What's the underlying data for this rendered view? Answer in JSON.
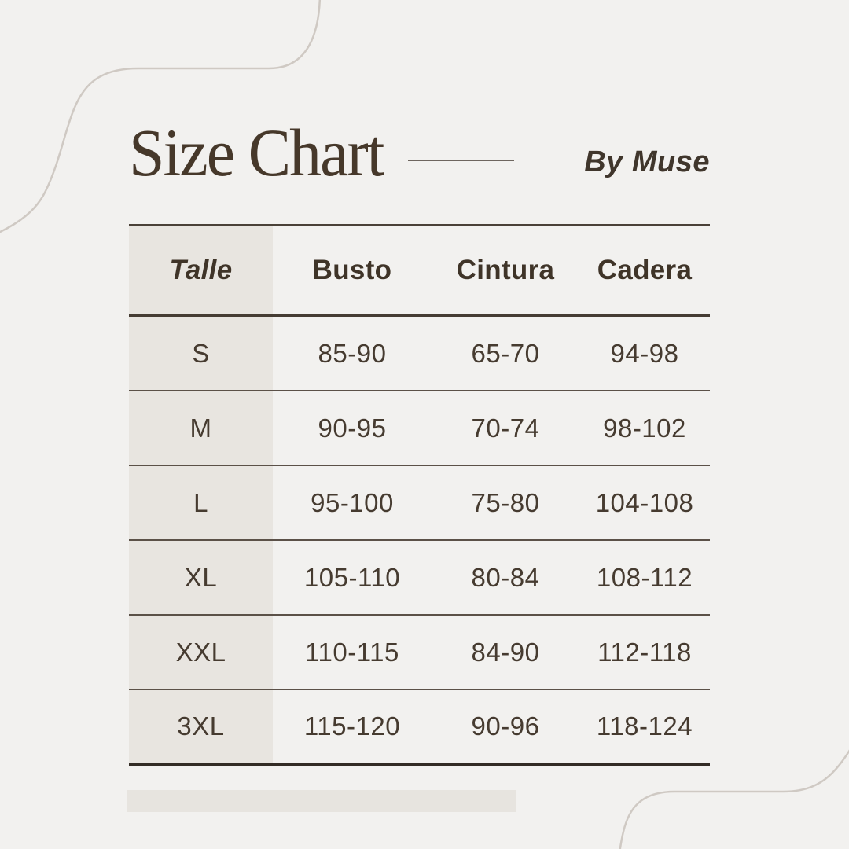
{
  "header": {
    "title": "Size Chart",
    "byline": "By Muse"
  },
  "table": {
    "columns": [
      "Talle",
      "Busto",
      "Cintura",
      "Cadera"
    ],
    "rows": [
      [
        "S",
        "85-90",
        "65-70",
        "94-98"
      ],
      [
        "M",
        "90-95",
        "70-74",
        "98-102"
      ],
      [
        "L",
        "95-100",
        "75-80",
        "104-108"
      ],
      [
        "XL",
        "105-110",
        "80-84",
        "108-112"
      ],
      [
        "XXL",
        "110-115",
        "84-90",
        "112-118"
      ],
      [
        "3XL",
        "115-120",
        "90-96",
        "118-124"
      ]
    ]
  },
  "chart_data": {
    "type": "table",
    "title": "Size Chart",
    "byline": "By Muse",
    "columns": [
      "Talle",
      "Busto",
      "Cintura",
      "Cadera"
    ],
    "rows": [
      {
        "talle": "S",
        "busto": "85-90",
        "cintura": "65-70",
        "cadera": "94-98"
      },
      {
        "talle": "M",
        "busto": "90-95",
        "cintura": "70-74",
        "cadera": "98-102"
      },
      {
        "talle": "L",
        "busto": "95-100",
        "cintura": "75-80",
        "cadera": "104-108"
      },
      {
        "talle": "XL",
        "busto": "105-110",
        "cintura": "80-84",
        "cadera": "108-112"
      },
      {
        "talle": "XXL",
        "busto": "110-115",
        "cintura": "84-90",
        "cadera": "112-118"
      },
      {
        "talle": "3XL",
        "busto": "115-120",
        "cintura": "90-96",
        "cadera": "118-124"
      }
    ]
  },
  "colors": {
    "background": "#f2f1ef",
    "label_column_fill": "#e8e5e0",
    "accent_bar": "#e7e4df",
    "title_text": "#46382a",
    "body_text": "#463b30",
    "heavy_rule": "#453c33",
    "light_rule": "#5b5148",
    "decor_curve": "#cfc9c3"
  }
}
